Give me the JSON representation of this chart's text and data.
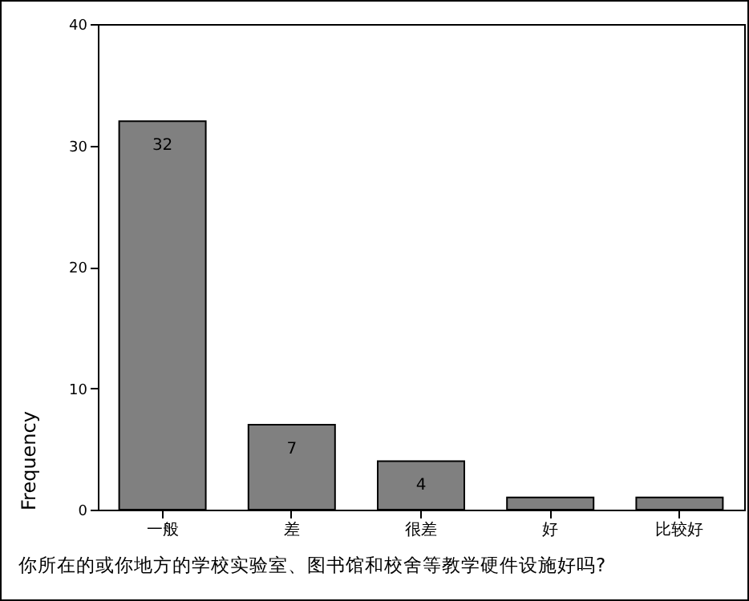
{
  "chart_data": {
    "type": "bar",
    "categories": [
      "一般",
      "差",
      "很差",
      "好",
      "比较好"
    ],
    "values": [
      32,
      7,
      4,
      1,
      1
    ],
    "color": "#808080",
    "value_labels": [
      "32",
      "7",
      "4",
      null,
      null
    ],
    "ylim": [
      0,
      40
    ],
    "yticks": [
      0,
      10,
      20,
      30,
      40
    ],
    "ylabel": "Frequency",
    "xlabel": "你所在的或你地方的学校实验室、图书馆和校舍等教学硬件设施好吗?",
    "grid": false
  }
}
